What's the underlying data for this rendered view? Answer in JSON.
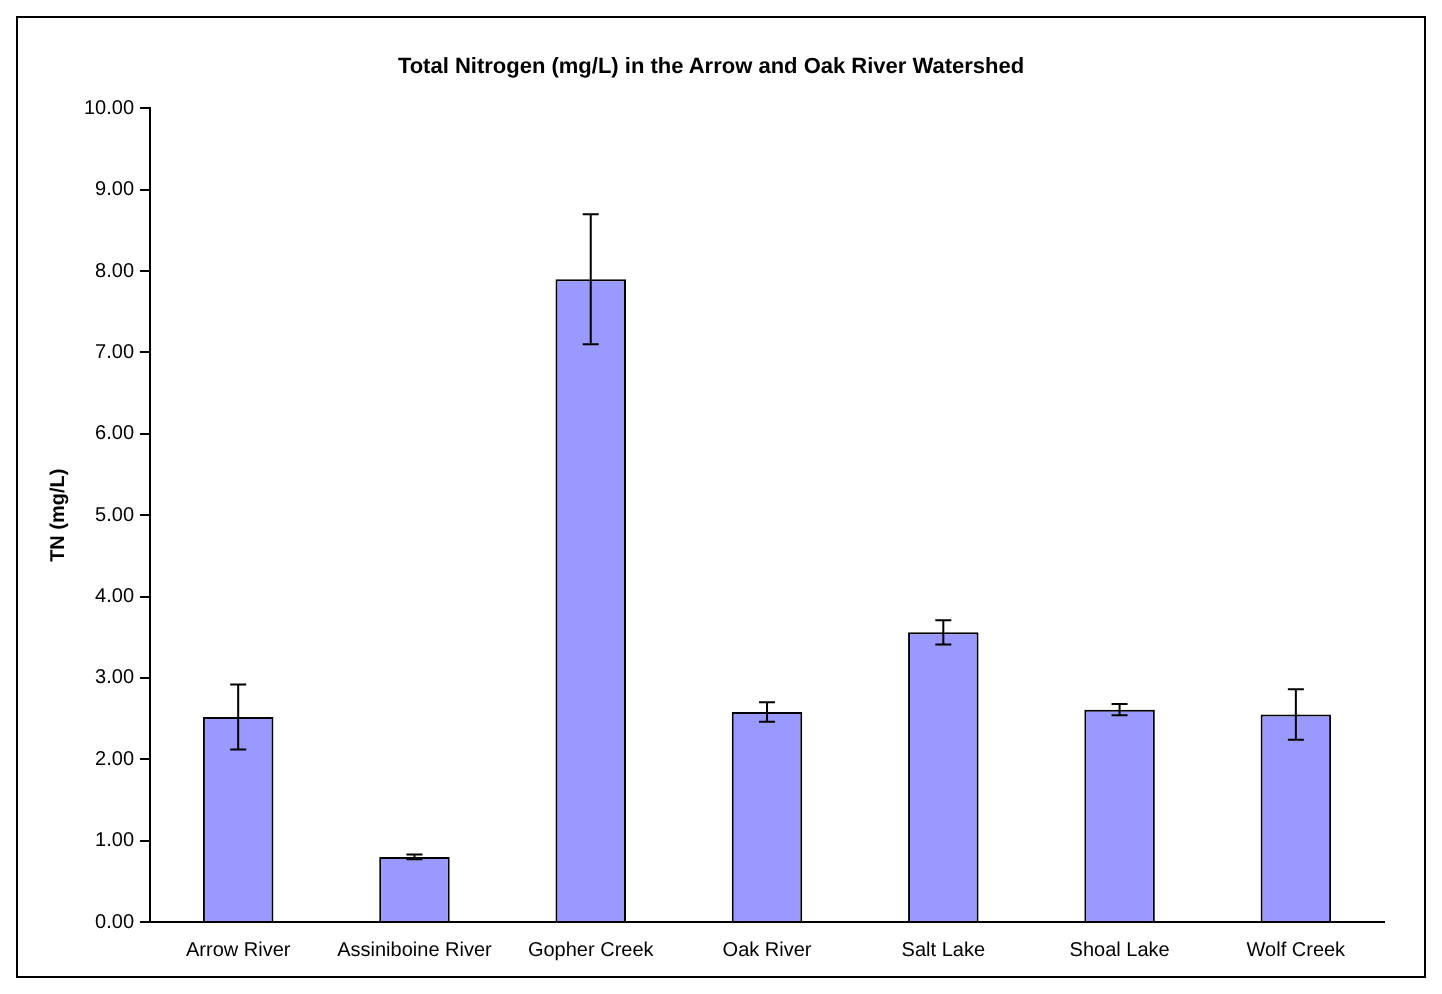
{
  "chart_data": {
    "type": "bar",
    "title": "Total Nitrogen (mg/L) in the Arrow and Oak River Watershed",
    "ylabel": "TN (mg/L)",
    "categories": [
      "Arrow River",
      "Assiniboine River",
      "Gopher Creek",
      "Oak River",
      "Salt Lake",
      "Shoal Lake",
      "Wolf Creek"
    ],
    "values": [
      2.52,
      0.8,
      7.9,
      2.58,
      3.56,
      2.61,
      2.55
    ],
    "errors": [
      0.4,
      0.03,
      0.8,
      0.12,
      0.15,
      0.07,
      0.31
    ],
    "color": "#9999ff",
    "ylim": [
      0,
      10
    ],
    "yticks": [
      {
        "value": 0,
        "label": "0.00"
      },
      {
        "value": 1,
        "label": "1.00"
      },
      {
        "value": 2,
        "label": "2.00"
      },
      {
        "value": 3,
        "label": "3.00"
      },
      {
        "value": 4,
        "label": "4.00"
      },
      {
        "value": 5,
        "label": "5.00"
      },
      {
        "value": 6,
        "label": "6.00"
      },
      {
        "value": 7,
        "label": "7.00"
      },
      {
        "value": 8,
        "label": "8.00"
      },
      {
        "value": 9,
        "label": "9.00"
      },
      {
        "value": 10,
        "label": "10.00"
      }
    ],
    "grid": false,
    "legend": false
  }
}
